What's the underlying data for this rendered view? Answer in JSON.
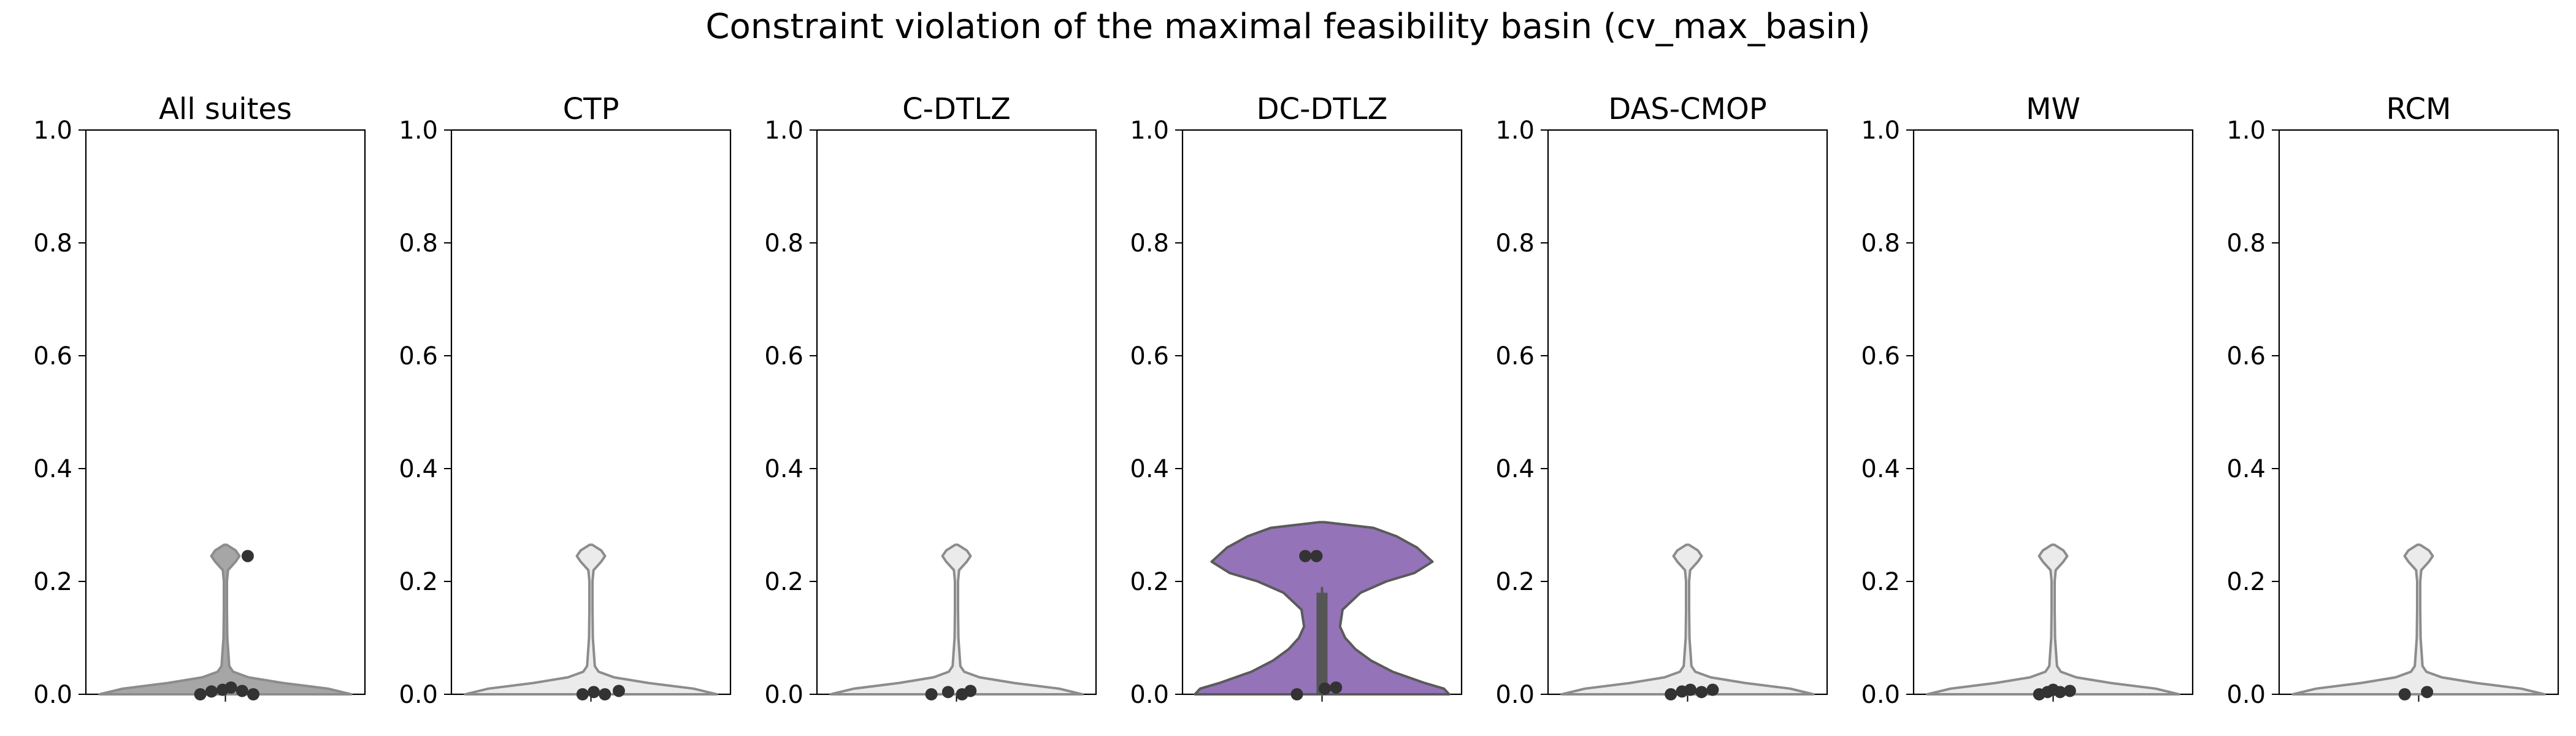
{
  "chart_data": {
    "type": "violin",
    "title": "Constraint violation of the maximal feasibility basin (cv_max_basin)",
    "ylim": [
      0,
      1
    ],
    "yticks": [
      0.0,
      0.2,
      0.4,
      0.6,
      0.8,
      1.0
    ],
    "ytick_labels": [
      "0.0",
      "0.2",
      "0.4",
      "0.6",
      "0.8",
      "1.0"
    ],
    "colors": {
      "all_suites_fill": "#a6a6a6",
      "background_fill": "#ebebeb",
      "background_edge": "#8c8c8c",
      "highlight_fill": "#9473b9",
      "highlight_edge": "#5a5a5a",
      "points": "#333333"
    },
    "violin_profile": [
      [
        0.0,
        0.98
      ],
      [
        0.01,
        0.8
      ],
      [
        0.02,
        0.45
      ],
      [
        0.03,
        0.18
      ],
      [
        0.04,
        0.06
      ],
      [
        0.05,
        0.03
      ],
      [
        0.1,
        0.015
      ],
      [
        0.15,
        0.012
      ],
      [
        0.2,
        0.012
      ],
      [
        0.22,
        0.02
      ],
      [
        0.235,
        0.08
      ],
      [
        0.245,
        0.11
      ],
      [
        0.255,
        0.08
      ],
      [
        0.265,
        0.01
      ]
    ],
    "panels": [
      {
        "name": "All suites",
        "style": "all",
        "points": [
          [
            -0.18,
            0.0
          ],
          [
            -0.1,
            0.005
          ],
          [
            -0.02,
            0.008
          ],
          [
            0.04,
            0.012
          ],
          [
            0.12,
            0.006
          ],
          [
            0.2,
            0.0
          ],
          [
            0.16,
            0.245
          ]
        ]
      },
      {
        "name": "CTP",
        "style": "background",
        "points": [
          [
            -0.06,
            0.0
          ],
          [
            0.02,
            0.004
          ],
          [
            0.1,
            0.0
          ],
          [
            0.2,
            0.006
          ]
        ]
      },
      {
        "name": "C-DTLZ",
        "style": "background",
        "points": [
          [
            -0.18,
            0.0
          ],
          [
            -0.06,
            0.004
          ],
          [
            0.04,
            0.0
          ],
          [
            0.1,
            0.006
          ]
        ]
      },
      {
        "name": "DC-DTLZ",
        "style": "highlight",
        "points": [
          [
            -0.18,
            0.0
          ],
          [
            -0.12,
            0.245
          ],
          [
            -0.04,
            0.245
          ],
          [
            0.02,
            0.01
          ],
          [
            0.1,
            0.012
          ]
        ]
      },
      {
        "name": "DAS-CMOP",
        "style": "background",
        "points": [
          [
            -0.12,
            0.0
          ],
          [
            -0.04,
            0.005
          ],
          [
            0.02,
            0.008
          ],
          [
            0.1,
            0.004
          ],
          [
            0.18,
            0.008
          ]
        ]
      },
      {
        "name": "MW",
        "style": "background",
        "points": [
          [
            -0.1,
            0.0
          ],
          [
            -0.04,
            0.004
          ],
          [
            0.0,
            0.008
          ],
          [
            0.05,
            0.004
          ],
          [
            0.12,
            0.006
          ]
        ]
      },
      {
        "name": "RCM",
        "style": "background",
        "points": [
          [
            -0.1,
            0.0
          ],
          [
            0.06,
            0.004
          ]
        ]
      }
    ]
  }
}
